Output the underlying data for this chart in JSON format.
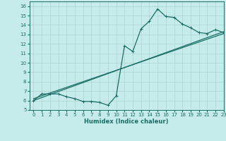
{
  "xlabel": "Humidex (Indice chaleur)",
  "bg_color": "#c5ecea",
  "grid_color": "#afd8d5",
  "line_color": "#1a6e65",
  "xlim": [
    -0.5,
    23
  ],
  "ylim": [
    5,
    16.5
  ],
  "xticks": [
    0,
    1,
    2,
    3,
    4,
    5,
    6,
    7,
    8,
    9,
    10,
    11,
    12,
    13,
    14,
    15,
    16,
    17,
    18,
    19,
    20,
    21,
    22,
    23
  ],
  "yticks": [
    5,
    6,
    7,
    8,
    9,
    10,
    11,
    12,
    13,
    14,
    15,
    16
  ],
  "series1_x": [
    0,
    1,
    2,
    3,
    4,
    5,
    6,
    7,
    8,
    9,
    10,
    11,
    12,
    13,
    14,
    15,
    16,
    17,
    18,
    19,
    20,
    21,
    22,
    23
  ],
  "series1_y": [
    6.0,
    6.7,
    6.7,
    6.7,
    6.4,
    6.2,
    5.9,
    5.9,
    5.8,
    5.5,
    6.5,
    11.8,
    11.2,
    13.6,
    14.4,
    15.7,
    14.9,
    14.8,
    14.1,
    13.7,
    13.2,
    13.1,
    13.5,
    13.2
  ],
  "series2_x": [
    0,
    23
  ],
  "series2_y": [
    6.0,
    13.3
  ],
  "series3_x": [
    0,
    23
  ],
  "series3_y": [
    6.2,
    13.1
  ],
  "marker_size": 2.5,
  "linewidth": 0.9,
  "tick_fontsize": 5.0,
  "xlabel_fontsize": 6.0
}
